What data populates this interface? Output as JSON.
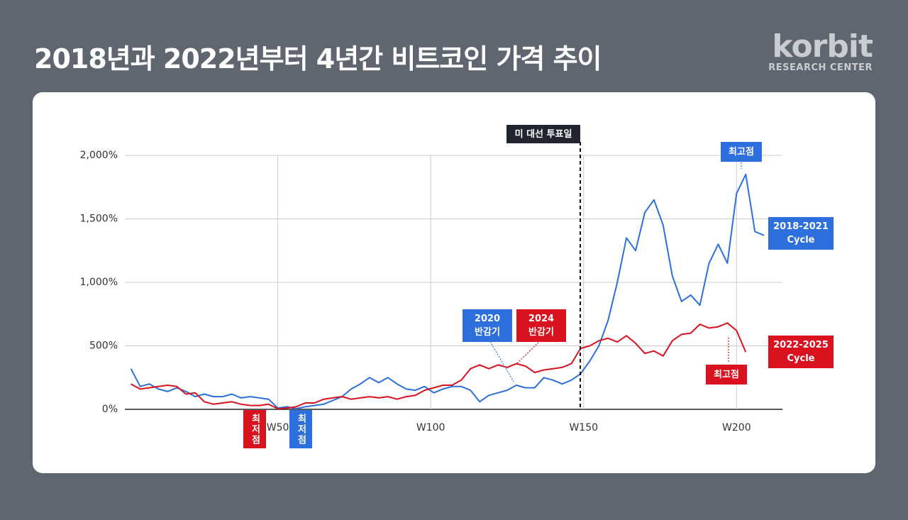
{
  "header": {
    "title": "2018년과 2022년부터 4년간 비트코인 가격 추이",
    "logo": "korbit",
    "logo_sub": "RESEARCH CENTER"
  },
  "chart_data": {
    "type": "line",
    "x": [
      2,
      5,
      8,
      11,
      14,
      17,
      20,
      23,
      26,
      29,
      32,
      35,
      38,
      41,
      44,
      47,
      50,
      53,
      56,
      59,
      62,
      65,
      68,
      71,
      74,
      77,
      80,
      83,
      86,
      89,
      92,
      95,
      98,
      101,
      104,
      107,
      110,
      113,
      116,
      119,
      122,
      125,
      128,
      131,
      134,
      137,
      140,
      143,
      146,
      149,
      152,
      155,
      158,
      161,
      164,
      167,
      170,
      173,
      176,
      179,
      182,
      185,
      188,
      191,
      194,
      197,
      200,
      203,
      206,
      209
    ],
    "series": [
      {
        "name": "2018-2021 Cycle",
        "color": "#2d6fdc",
        "values": [
          320,
          180,
          200,
          160,
          140,
          170,
          140,
          100,
          120,
          100,
          100,
          120,
          90,
          100,
          90,
          80,
          10,
          20,
          5,
          20,
          30,
          40,
          70,
          100,
          160,
          200,
          250,
          210,
          250,
          200,
          160,
          150,
          180,
          130,
          160,
          180,
          180,
          150,
          60,
          110,
          130,
          150,
          190,
          170,
          170,
          250,
          230,
          200,
          230,
          280,
          380,
          500,
          700,
          1000,
          1350,
          1250,
          1550,
          1650,
          1450,
          1050,
          850,
          900,
          820,
          1150,
          1300,
          1150,
          1700,
          1850,
          1400,
          1370
        ]
      },
      {
        "name": "2022-2025 Cycle",
        "color": "#d9121f",
        "values": [
          200,
          160,
          170,
          180,
          190,
          180,
          120,
          130,
          60,
          40,
          50,
          60,
          40,
          30,
          30,
          40,
          5,
          10,
          20,
          50,
          50,
          80,
          90,
          100,
          80,
          90,
          100,
          90,
          100,
          80,
          100,
          110,
          150,
          170,
          190,
          190,
          230,
          320,
          350,
          320,
          350,
          330,
          360,
          340,
          290,
          310,
          320,
          330,
          360,
          480,
          500,
          540,
          560,
          530,
          580,
          520,
          440,
          460,
          420,
          540,
          590,
          600,
          670,
          640,
          650,
          680,
          620,
          450,
          null,
          null
        ]
      }
    ],
    "xlim": [
      0,
      215
    ],
    "xticks": [
      {
        "value": 50,
        "label": "W50"
      },
      {
        "value": 100,
        "label": "W100"
      },
      {
        "value": 150,
        "label": "W150"
      },
      {
        "value": 200,
        "label": "W200"
      }
    ],
    "ylim": [
      0,
      2000
    ],
    "yticks": [
      {
        "value": 0,
        "label": "0%"
      },
      {
        "value": 500,
        "label": "500%"
      },
      {
        "value": 1000,
        "label": "1,000%"
      },
      {
        "value": 1500,
        "label": "1,500%"
      },
      {
        "value": 2000,
        "label": "2,000%"
      }
    ],
    "grid": true,
    "annotations": {
      "election": "미 대선 투표일",
      "blue_peak": "최고점",
      "red_peak": "최고점",
      "red_low": "최저점",
      "blue_low": "최저점",
      "halving_2020": [
        "2020",
        "반감기"
      ],
      "halving_2024": [
        "2024",
        "반감기"
      ]
    }
  }
}
